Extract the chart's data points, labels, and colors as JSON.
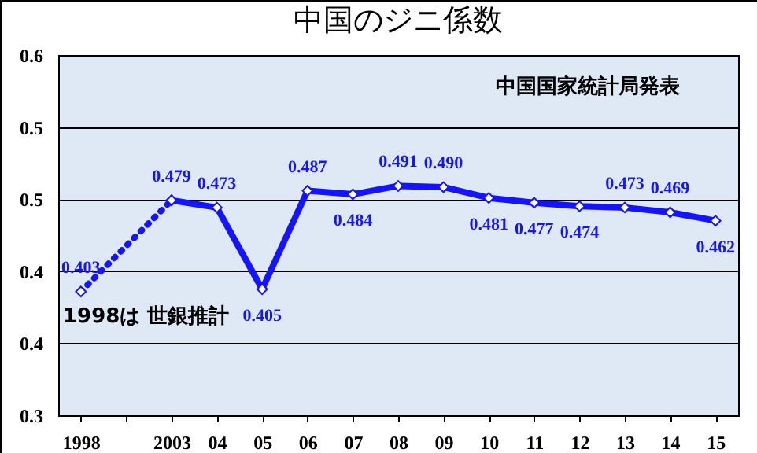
{
  "chart_data": {
    "type": "line",
    "title": "中国のジニ係数",
    "categories": [
      "1998",
      null,
      "2003",
      "04",
      "05",
      "06",
      "07",
      "08",
      "09",
      "10",
      "11",
      "12",
      "13",
      "14",
      "15"
    ],
    "series": [
      {
        "color": "#1414ff",
        "line_style": "dotted",
        "values": [
          0.403,
          null,
          0.479,
          null,
          null,
          null,
          null,
          null,
          null,
          null,
          null,
          null,
          null,
          null,
          null
        ],
        "value_labels": [
          "0.403",
          null,
          null,
          null,
          null,
          null,
          null,
          null,
          null,
          null,
          null,
          null,
          null,
          null,
          null
        ]
      },
      {
        "color": "#1414ff",
        "line_style": "solid",
        "values": [
          null,
          null,
          0.479,
          0.473,
          0.405,
          0.487,
          0.484,
          0.491,
          0.49,
          0.481,
          0.477,
          0.474,
          0.473,
          0.469,
          0.462
        ],
        "value_labels": [
          null,
          null,
          "0.479",
          "0.473",
          "0.405",
          "0.487",
          "0.484",
          "0.491",
          "0.490",
          "0.481",
          "0.477",
          "0.474",
          "0.473",
          "0.469",
          "0.462"
        ]
      }
    ],
    "ylim": [
      0.3,
      0.6
    ],
    "yticks": [
      {
        "value": 0.3,
        "label": "0.3"
      },
      {
        "value": 0.36,
        "label": "0.4"
      },
      {
        "value": 0.42,
        "label": "0.4"
      },
      {
        "value": 0.48,
        "label": "0.5"
      },
      {
        "value": 0.54,
        "label": "0.5"
      },
      {
        "value": 0.6,
        "label": "0.6"
      }
    ],
    "grid": "y",
    "marker": "diamond",
    "annotations": [
      "中国国家統計局発表",
      "1998は 世銀推計"
    ]
  }
}
